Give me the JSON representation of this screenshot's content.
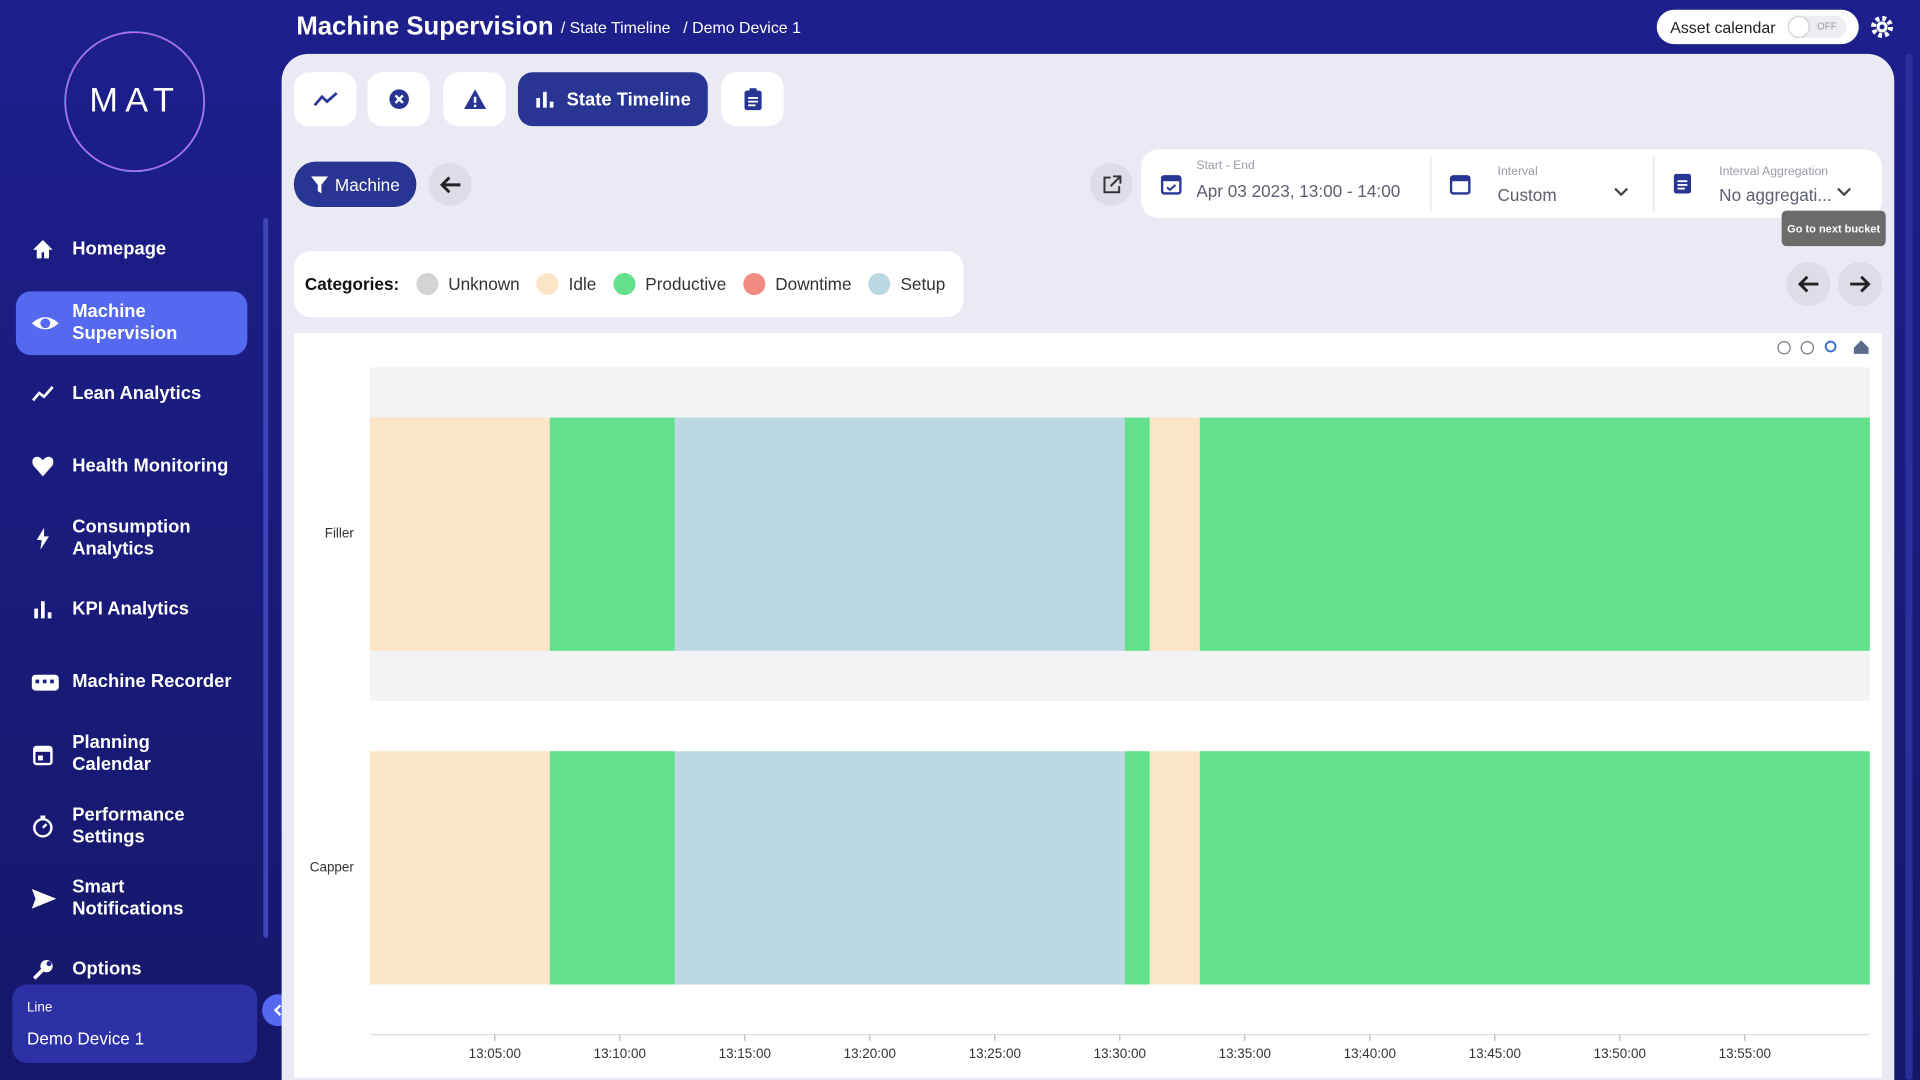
{
  "sidebar": {
    "logo": "MAT",
    "nav": [
      "Homepage",
      "Machine Supervision",
      "Lean Analytics",
      "Health Monitoring",
      "Consumption Analytics",
      "KPI Analytics",
      "Machine Recorder",
      "Planning Calendar",
      "Performance Settings",
      "Smart Notifications",
      "Options"
    ],
    "line_label": "Line",
    "line_value": "Demo Device 1"
  },
  "header": {
    "title": "Machine Supervision",
    "breadcrumbs": [
      "/ State Timeline",
      "/ Demo Device 1"
    ],
    "asset_calendar": "Asset calendar",
    "toggle": "OFF"
  },
  "tabs": {
    "active": "State Timeline"
  },
  "filter": {
    "button": "Machine"
  },
  "date": {
    "start_end_label": "Start - End",
    "start_end": "Apr 03 2023, 13:00 - 14:00",
    "interval_label": "Interval",
    "interval": "Custom",
    "aggregation_label": "Interval Aggregation",
    "aggregation": "No aggregati..."
  },
  "tooltip": "Go to next bucket",
  "chart_data": {
    "type": "timeline",
    "legend_title": "Categories:",
    "states": [
      {
        "name": "Unknown",
        "color": "#d4d4d4"
      },
      {
        "name": "Idle",
        "color": "#fce5c6"
      },
      {
        "name": "Productive",
        "color": "#63e08c"
      },
      {
        "name": "Downtime",
        "color": "#f28b82"
      },
      {
        "name": "Setup",
        "color": "#bcd8e2"
      }
    ],
    "series": [
      {
        "name": "Filler",
        "segments": [
          {
            "state": "Idle",
            "start": 0,
            "end": 7.2
          },
          {
            "state": "Productive",
            "start": 7.2,
            "end": 12.2
          },
          {
            "state": "Setup",
            "start": 12.2,
            "end": 30.2
          },
          {
            "state": "Productive",
            "start": 30.2,
            "end": 31.2
          },
          {
            "state": "Idle",
            "start": 31.2,
            "end": 33.2
          },
          {
            "state": "Productive",
            "start": 33.2,
            "end": 60
          }
        ]
      },
      {
        "name": "Capper",
        "segments": [
          {
            "state": "Idle",
            "start": 0,
            "end": 7.2
          },
          {
            "state": "Productive",
            "start": 7.2,
            "end": 12.2
          },
          {
            "state": "Setup",
            "start": 12.2,
            "end": 30.2
          },
          {
            "state": "Productive",
            "start": 30.2,
            "end": 31.2
          },
          {
            "state": "Idle",
            "start": 31.2,
            "end": 33.2
          },
          {
            "state": "Productive",
            "start": 33.2,
            "end": 60
          }
        ]
      }
    ],
    "xlim": [
      0,
      60
    ],
    "xticks": [
      {
        "value": 5,
        "label": "13:05:00"
      },
      {
        "value": 10,
        "label": "13:10:00"
      },
      {
        "value": 15,
        "label": "13:15:00"
      },
      {
        "value": 20,
        "label": "13:20:00"
      },
      {
        "value": 25,
        "label": "13:25:00"
      },
      {
        "value": 30,
        "label": "13:30:00"
      },
      {
        "value": 35,
        "label": "13:35:00"
      },
      {
        "value": 40,
        "label": "13:40:00"
      },
      {
        "value": 45,
        "label": "13:45:00"
      },
      {
        "value": 50,
        "label": "13:50:00"
      },
      {
        "value": 55,
        "label": "13:55:00"
      }
    ]
  }
}
